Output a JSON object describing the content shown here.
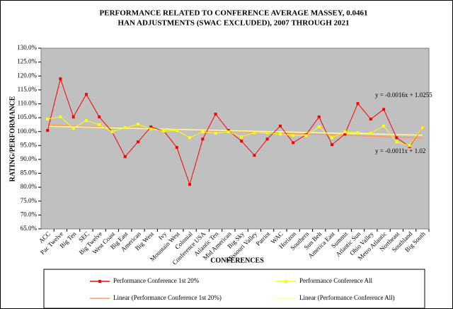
{
  "chart_data": {
    "type": "line",
    "title": [
      "PERFORMANCE RELATED TO CONFERENCE AVERAGE MASSEY, 0.0461",
      "HAN ADJUSTMENTS (SWAC  EXCLUDED), 2007 THROUGH  2021"
    ],
    "x_label": "CONFERENCES",
    "y_label": "RATING/PERFORMANCE",
    "categories": [
      "ACC",
      "Pac Twelve",
      "Big Ten",
      "SEC",
      "Big Twelve",
      "West Coast",
      "Big East",
      "American",
      "Big West",
      "Ivy",
      "Mountain West",
      "Colonial",
      "Conference USA",
      "Atlantic Ten",
      "Mid American",
      "Big Sky",
      "Missouri Valley",
      "Patriot",
      "WAC",
      "Horizon",
      "Southern",
      "Sun Belt",
      "America East",
      "Summit",
      "Atlantic Sun",
      "Ohio Valley",
      "Metro Atlantic",
      "Northeast",
      "Southland",
      "Big South"
    ],
    "series": [
      {
        "name": "Performance Conference 1st 20%",
        "color": "#ff0000",
        "values": [
          100.4,
          119,
          105.3,
          113.4,
          105.3,
          99.9,
          91,
          96.3,
          101.7,
          100.2,
          94.3,
          81,
          97.3,
          106.3,
          100.4,
          96.6,
          91.5,
          97.3,
          102,
          96,
          98.9,
          105.3,
          95.3,
          99.1,
          110.1,
          104.5,
          108,
          97.8,
          94.6,
          101.4
        ]
      },
      {
        "name": "Performance Conference All",
        "color": "#ffff00",
        "values": [
          104.5,
          105.3,
          101.2,
          104,
          102.5,
          99.9,
          101.4,
          102.7,
          100.9,
          100.2,
          100.4,
          97.8,
          99.9,
          99.4,
          99.9,
          98.1,
          99.6,
          99.6,
          99.1,
          98.6,
          98.6,
          101.7,
          97.8,
          99.9,
          99.6,
          99.4,
          102,
          96.3,
          95,
          101.4
        ]
      }
    ],
    "trendlines": [
      {
        "name": "Linear (Performance Conference 1st 20%)",
        "color": "#ff9966",
        "values": [
          102.4,
          97.7
        ],
        "equation": "y = -0.0016x + 1.0255"
      },
      {
        "name": "Linear (Performance Conference All)",
        "color": "#ffff99",
        "values": [
          101.9,
          98.7
        ],
        "equation": "y = -0.0011x + 1.02"
      }
    ],
    "ylim": [
      65,
      130
    ],
    "yticks": [
      {
        "value": 65,
        "label": "65.0%"
      },
      {
        "value": 70,
        "label": "70.0%"
      },
      {
        "value": 75,
        "label": "75.0%"
      },
      {
        "value": 80,
        "label": "80.0%"
      },
      {
        "value": 85,
        "label": "85.0%"
      },
      {
        "value": 90,
        "label": "90.0%"
      },
      {
        "value": 95,
        "label": "95.0%"
      },
      {
        "value": 100,
        "label": "100.0%"
      },
      {
        "value": 105,
        "label": "105.0%"
      },
      {
        "value": 110,
        "label": "110.0%"
      },
      {
        "value": 115,
        "label": "115.0%"
      },
      {
        "value": 120,
        "label": "120.0%"
      },
      {
        "value": 125,
        "label": "125.0%"
      },
      {
        "value": 130,
        "label": "130.0%"
      }
    ]
  }
}
